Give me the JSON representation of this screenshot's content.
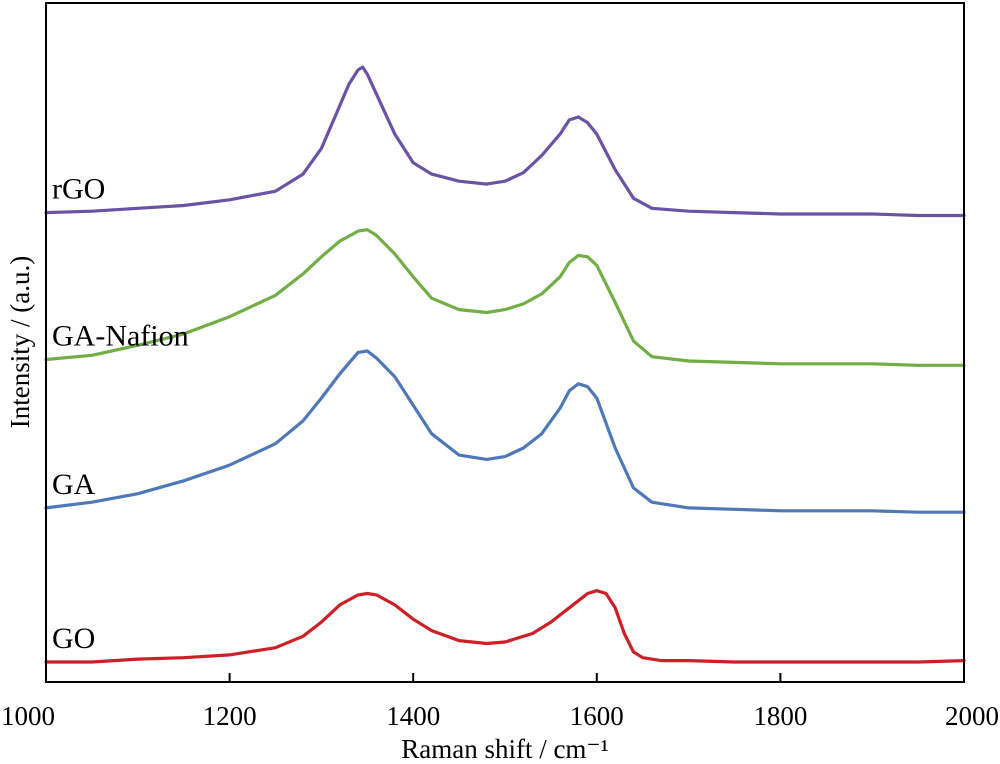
{
  "chart_data": {
    "type": "line",
    "xlabel": "Raman shift / cm⁻¹",
    "ylabel": "Intensity / (a.u.)",
    "xlim": [
      1000,
      2000
    ],
    "ylim": [
      0,
      4.5
    ],
    "x_ticks": [
      1000,
      1200,
      1400,
      1600,
      1800,
      2000
    ],
    "y_ticks_shown": false,
    "grid": false,
    "legend": "inline labels at left of each curve",
    "series": [
      {
        "name": "GO",
        "color": "#cc1f26",
        "x": [
          1000,
          1050,
          1100,
          1150,
          1200,
          1250,
          1280,
          1300,
          1320,
          1340,
          1350,
          1360,
          1380,
          1400,
          1420,
          1450,
          1480,
          1500,
          1530,
          1550,
          1570,
          1590,
          1600,
          1610,
          1620,
          1630,
          1640,
          1650,
          1670,
          1700,
          1750,
          1800,
          1850,
          1900,
          1950,
          2000
        ],
        "y": [
          0.0,
          0.0,
          0.02,
          0.03,
          0.05,
          0.1,
          0.18,
          0.28,
          0.4,
          0.47,
          0.48,
          0.47,
          0.4,
          0.3,
          0.22,
          0.15,
          0.13,
          0.14,
          0.2,
          0.28,
          0.38,
          0.48,
          0.5,
          0.48,
          0.38,
          0.2,
          0.07,
          0.03,
          0.01,
          0.01,
          0.0,
          0.0,
          0.0,
          0.0,
          0.0,
          0.01
        ]
      },
      {
        "name": "GA",
        "color": "#4f78b8",
        "x": [
          1000,
          1050,
          1100,
          1150,
          1200,
          1250,
          1280,
          1300,
          1320,
          1340,
          1350,
          1360,
          1380,
          1400,
          1420,
          1450,
          1480,
          1500,
          1520,
          1540,
          1560,
          1570,
          1580,
          1590,
          1600,
          1620,
          1640,
          1660,
          1700,
          1750,
          1800,
          1850,
          1900,
          1950,
          2000
        ],
        "y": [
          1.08,
          1.12,
          1.18,
          1.27,
          1.38,
          1.53,
          1.69,
          1.85,
          2.02,
          2.17,
          2.18,
          2.13,
          2.0,
          1.8,
          1.6,
          1.45,
          1.42,
          1.44,
          1.5,
          1.6,
          1.78,
          1.9,
          1.95,
          1.93,
          1.85,
          1.5,
          1.22,
          1.12,
          1.08,
          1.07,
          1.06,
          1.06,
          1.06,
          1.05,
          1.05
        ]
      },
      {
        "name": "GA-Nafion",
        "color": "#72ad45",
        "x": [
          1000,
          1050,
          1100,
          1150,
          1200,
          1250,
          1280,
          1300,
          1320,
          1340,
          1350,
          1360,
          1380,
          1400,
          1420,
          1450,
          1480,
          1500,
          1520,
          1540,
          1560,
          1570,
          1580,
          1590,
          1600,
          1620,
          1640,
          1660,
          1700,
          1750,
          1800,
          1850,
          1900,
          1950,
          2000
        ],
        "y": [
          2.12,
          2.15,
          2.22,
          2.3,
          2.42,
          2.57,
          2.72,
          2.84,
          2.95,
          3.02,
          3.03,
          2.99,
          2.86,
          2.7,
          2.55,
          2.47,
          2.45,
          2.47,
          2.51,
          2.58,
          2.7,
          2.8,
          2.85,
          2.84,
          2.78,
          2.52,
          2.25,
          2.14,
          2.11,
          2.1,
          2.09,
          2.09,
          2.09,
          2.08,
          2.08
        ]
      },
      {
        "name": "rGO",
        "color": "#6a52a6",
        "x": [
          1000,
          1050,
          1100,
          1150,
          1200,
          1250,
          1280,
          1300,
          1320,
          1330,
          1340,
          1345,
          1350,
          1360,
          1380,
          1400,
          1420,
          1450,
          1480,
          1500,
          1520,
          1540,
          1560,
          1570,
          1580,
          1590,
          1600,
          1620,
          1640,
          1660,
          1700,
          1750,
          1800,
          1850,
          1900,
          1950,
          2000
        ],
        "y": [
          3.15,
          3.16,
          3.18,
          3.2,
          3.24,
          3.3,
          3.42,
          3.6,
          3.9,
          4.05,
          4.15,
          4.17,
          4.12,
          3.98,
          3.7,
          3.5,
          3.42,
          3.37,
          3.35,
          3.37,
          3.43,
          3.55,
          3.7,
          3.8,
          3.82,
          3.78,
          3.7,
          3.45,
          3.25,
          3.18,
          3.16,
          3.15,
          3.14,
          3.14,
          3.14,
          3.13,
          3.13
        ]
      }
    ]
  }
}
